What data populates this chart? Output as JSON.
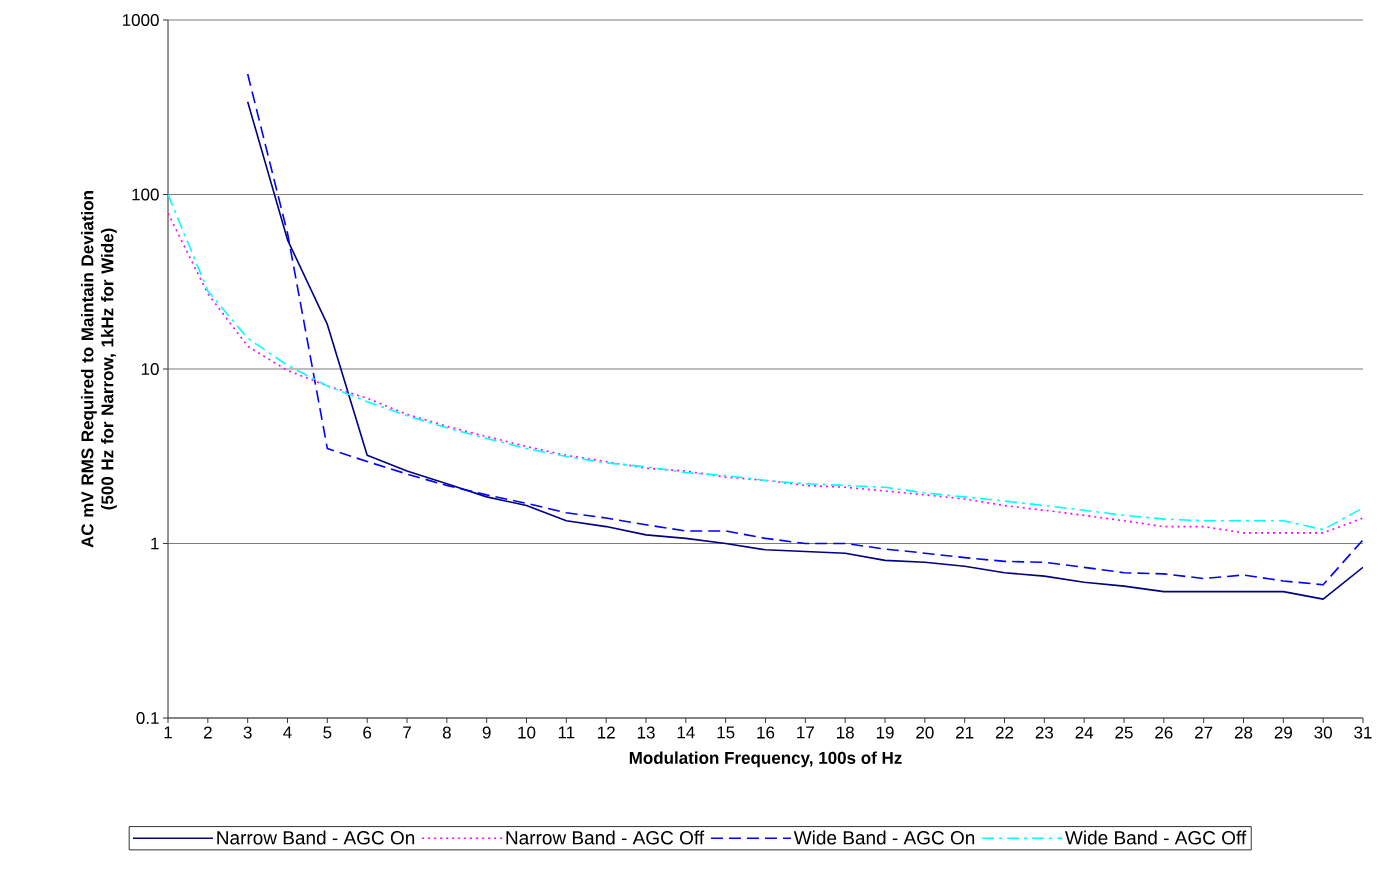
{
  "chart_data": {
    "type": "line",
    "xlabel": "Modulation Frequency, 100s of Hz",
    "ylabel": "AC mV RMS Required to Maintain Deviation (500 Hz for Narrow, 1kHz for Wide)",
    "x": [
      1,
      2,
      3,
      4,
      5,
      6,
      7,
      8,
      9,
      10,
      11,
      12,
      13,
      14,
      15,
      16,
      17,
      18,
      19,
      20,
      21,
      22,
      23,
      24,
      25,
      26,
      27,
      28,
      29,
      30,
      31
    ],
    "xlim": [
      1,
      31
    ],
    "xticks": [
      1,
      2,
      3,
      4,
      5,
      6,
      7,
      8,
      9,
      10,
      11,
      12,
      13,
      14,
      15,
      16,
      17,
      18,
      19,
      20,
      21,
      22,
      23,
      24,
      25,
      26,
      27,
      28,
      29,
      30,
      31
    ],
    "ylim": [
      0.1,
      1000
    ],
    "yticks": [
      0.1,
      1,
      10,
      100,
      1000
    ],
    "log": "y",
    "grid": "y",
    "legend": "bottom",
    "series": [
      {
        "name": "Narrow  Band - AGC On",
        "color": "#000080",
        "line_style": "solid",
        "values": [
          null,
          null,
          340,
          55,
          18,
          3.2,
          2.6,
          2.2,
          1.85,
          1.65,
          1.35,
          1.25,
          1.12,
          1.07,
          1.0,
          0.92,
          0.9,
          0.88,
          0.8,
          0.78,
          0.74,
          0.68,
          0.65,
          0.6,
          0.57,
          0.53,
          0.53,
          0.53,
          0.53,
          0.48,
          0.73
        ]
      },
      {
        "name": "Narrow  Band - AGC Off",
        "color": "#ff00ff",
        "line_style": "dotted",
        "values": [
          78,
          27,
          13.5,
          9.8,
          8,
          6.8,
          5.5,
          4.7,
          4.1,
          3.6,
          3.2,
          2.95,
          2.7,
          2.6,
          2.4,
          2.3,
          2.15,
          2.1,
          2.0,
          1.9,
          1.8,
          1.65,
          1.55,
          1.45,
          1.35,
          1.25,
          1.25,
          1.15,
          1.15,
          1.15,
          1.4
        ]
      },
      {
        "name": "Wide Band - AGC On",
        "color": "#0000ff",
        "line_style": "dashed",
        "values": [
          null,
          null,
          490,
          60,
          3.5,
          2.95,
          2.5,
          2.15,
          1.9,
          1.7,
          1.5,
          1.4,
          1.28,
          1.18,
          1.18,
          1.07,
          1.0,
          1.0,
          0.93,
          0.88,
          0.83,
          0.79,
          0.78,
          0.73,
          0.68,
          0.67,
          0.63,
          0.66,
          0.61,
          0.58,
          1.05
        ]
      },
      {
        "name": "Wide Band - AGC Off",
        "color": "#00ffff",
        "line_style": "dashdot",
        "values": [
          100,
          28,
          15,
          10.5,
          8,
          6.5,
          5.4,
          4.6,
          4.0,
          3.5,
          3.15,
          2.9,
          2.75,
          2.55,
          2.45,
          2.3,
          2.2,
          2.15,
          2.1,
          1.95,
          1.85,
          1.75,
          1.65,
          1.55,
          1.45,
          1.38,
          1.35,
          1.35,
          1.35,
          1.2,
          1.6
        ]
      }
    ]
  }
}
